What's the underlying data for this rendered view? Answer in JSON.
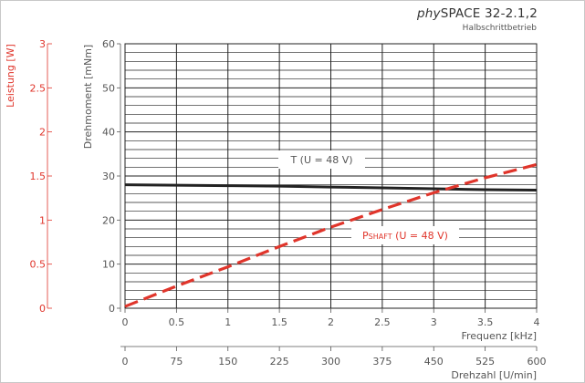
{
  "title": {
    "prefix": "phy",
    "suffix": "SPACE 32-2.1,2",
    "subtitle": "Halbschrittbetrieb"
  },
  "colors": {
    "torque": "#222222",
    "power": "#e0352b",
    "grid": "#222222",
    "axis_text": "#555555",
    "power_axis_text": "#e0352b"
  },
  "chart_data": {
    "type": "line",
    "x_axis": {
      "label": "Frequenz [kHz]",
      "range": [
        0,
        4
      ],
      "ticks": [
        "0",
        "0.5",
        "1",
        "1.5",
        "2",
        "2.5",
        "3",
        "3.5",
        "4"
      ]
    },
    "x2_axis": {
      "label": "Drehzahl [U/min]",
      "range": [
        0,
        600
      ],
      "ticks": [
        "0",
        "75",
        "150",
        "225",
        "300",
        "375",
        "450",
        "525",
        "600"
      ]
    },
    "y_axis": {
      "label": "Drehmoment [mNm]",
      "range": [
        0,
        60
      ],
      "ticks": [
        "0",
        "10",
        "20",
        "30",
        "40",
        "50",
        "60"
      ]
    },
    "y2_axis": {
      "label": "Leistung [W]",
      "range": [
        0,
        3
      ],
      "ticks": [
        "0",
        "0.5",
        "1",
        "1.5",
        "2",
        "2.5",
        "3"
      ]
    },
    "series": [
      {
        "name": "T (U = 48 V)",
        "axis": "torque",
        "style": "solid",
        "x": [
          0,
          0.5,
          1,
          1.5,
          2,
          2.5,
          3,
          3.5,
          4
        ],
        "y": [
          28.0,
          27.9,
          27.8,
          27.7,
          27.5,
          27.3,
          27.1,
          26.9,
          26.8
        ]
      },
      {
        "name_main": "P",
        "name_sub": "SHAFT",
        "name_rest": " (U = 48 V)",
        "axis": "power",
        "style": "dashed",
        "x": [
          0,
          0.5,
          1,
          1.5,
          2,
          2.5,
          3,
          3.5,
          4
        ],
        "y": [
          0.02,
          0.25,
          0.47,
          0.7,
          0.92,
          1.12,
          1.31,
          1.48,
          1.63
        ]
      }
    ]
  }
}
